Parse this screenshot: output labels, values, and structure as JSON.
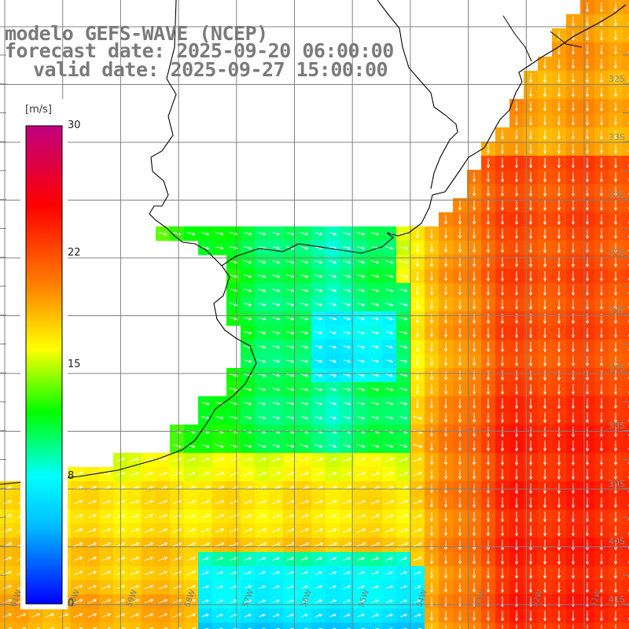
{
  "title": {
    "line1": "modelo GEFS-WAVE (NCEP)",
    "line2": "forecast date: 2025-09-20 06:00:00",
    "line3": "valid date: 2025-09-27 15:00:00"
  },
  "colorbar": {
    "unit": "[m/s]",
    "min": 0,
    "max": 30,
    "labels": [
      "30",
      "22",
      "15",
      "8",
      "0"
    ],
    "label_values": [
      30,
      22,
      15,
      8,
      0
    ],
    "colors": [
      "#0000ff",
      "#00c0ff",
      "#00ffff",
      "#00ff00",
      "#ffff00",
      "#ff8000",
      "#ff0000",
      "#c00080"
    ],
    "color_stops": [
      0,
      5,
      8,
      12,
      16,
      20,
      25,
      30
    ]
  },
  "lat_labels": [
    "32S",
    "33S",
    "34S",
    "35S",
    "36S",
    "37S",
    "38S",
    "39S",
    "40S",
    "41S"
  ],
  "lon_labels": [
    "61W",
    "60W",
    "59W",
    "58W",
    "57W",
    "56W",
    "55W",
    "54W",
    "53W",
    "52W",
    "51W"
  ],
  "land_color": "#ffffff",
  "grid_color": "#808080",
  "coast_color": "#000000",
  "arrow_color": "#ffffff"
}
